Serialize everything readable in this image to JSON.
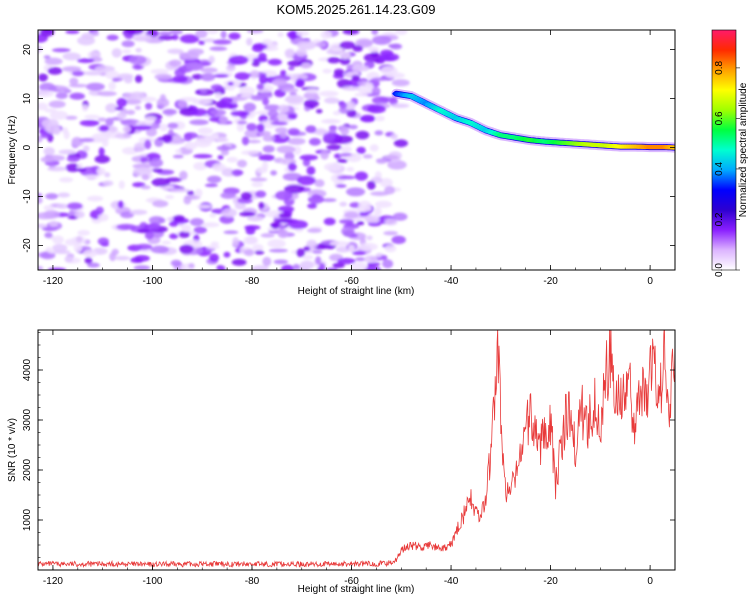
{
  "chart_data": [
    {
      "type": "heatmap",
      "title": "KOM5.2025.261.14.23.G09",
      "xlabel": "Height of straight line (km)",
      "ylabel": "Frequency (Hz)",
      "xlim": [
        -123,
        5
      ],
      "ylim": [
        -25,
        24
      ],
      "xticks": [
        -120,
        -100,
        -80,
        -60,
        -40,
        -20,
        0
      ],
      "yticks": [
        -20,
        -10,
        0,
        10,
        20
      ],
      "colorbar": {
        "label": "Normalized spectral amplitude",
        "range": [
          0,
          0.95
        ],
        "ticks": [
          0.0,
          0.2,
          0.4,
          0.6,
          0.8
        ],
        "tick_labels": [
          "0.0",
          "0.2",
          "0.4",
          "0.6",
          "0.8"
        ],
        "colors": [
          "#ffffff",
          "#dcb4ff",
          "#8a1fff",
          "#2e00d0",
          "#0000ff",
          "#00aaff",
          "#00ffd0",
          "#00ff40",
          "#a0ff00",
          "#ffff00",
          "#ffa000",
          "#ff2a00",
          "#ff1a6a"
        ]
      },
      "noise_region_km": [
        -123,
        -50
      ],
      "trace": {
        "x": [
          -51,
          -48,
          -45,
          -42,
          -39,
          -36,
          -33,
          -30,
          -27,
          -24,
          -21,
          -18,
          -15,
          -12,
          -9,
          -6,
          -3,
          0,
          3,
          5
        ],
        "freq": [
          11,
          10.5,
          9,
          7.5,
          6,
          5,
          3.5,
          2.5,
          2,
          1.5,
          1.2,
          1,
          0.8,
          0.6,
          0.4,
          0.2,
          0.2,
          0.1,
          0.1,
          0
        ],
        "amplitude": [
          0.35,
          0.45,
          0.4,
          0.5,
          0.45,
          0.5,
          0.45,
          0.55,
          0.55,
          0.6,
          0.55,
          0.6,
          0.65,
          0.7,
          0.7,
          0.75,
          0.8,
          0.85,
          0.85,
          0.8
        ]
      }
    },
    {
      "type": "line",
      "xlabel": "Height of straight line (km)",
      "ylabel": "SNR (10 * v/v)",
      "xlim": [
        -123,
        5
      ],
      "ylim": [
        0,
        4800
      ],
      "xticks": [
        -120,
        -100,
        -80,
        -60,
        -40,
        -20,
        0
      ],
      "yticks": [
        1000,
        2000,
        3000,
        4000
      ],
      "color": "#e83a3a",
      "series": [
        {
          "name": "SNR",
          "x": [
            -123,
            -110,
            -100,
            -90,
            -80,
            -70,
            -60,
            -53,
            -51,
            -50,
            -48,
            -46,
            -44,
            -42,
            -40,
            -38,
            -36,
            -34,
            -33,
            -32,
            -31,
            -30.5,
            -30,
            -29,
            -28,
            -27,
            -26,
            -25,
            -24,
            -23,
            -22,
            -21,
            -20,
            -19,
            -18,
            -17,
            -16,
            -15,
            -14,
            -13,
            -12,
            -11,
            -10,
            -9,
            -8,
            -7,
            -6,
            -5,
            -4,
            -3,
            -2,
            -1,
            0,
            1,
            2,
            3,
            4,
            5
          ],
          "y": [
            120,
            120,
            110,
            120,
            120,
            115,
            120,
            130,
            200,
            400,
            500,
            450,
            500,
            400,
            500,
            1000,
            1400,
            1000,
            1500,
            2300,
            3800,
            4400,
            3000,
            1500,
            1600,
            1800,
            2500,
            2800,
            3100,
            2700,
            2500,
            2900,
            3000,
            1700,
            2400,
            3000,
            3200,
            2300,
            3500,
            2800,
            3100,
            3500,
            2800,
            3800,
            4400,
            3200,
            3700,
            3300,
            3600,
            2800,
            3900,
            3300,
            4000,
            3900,
            3500,
            4500,
            3200,
            4600
          ]
        }
      ]
    }
  ]
}
